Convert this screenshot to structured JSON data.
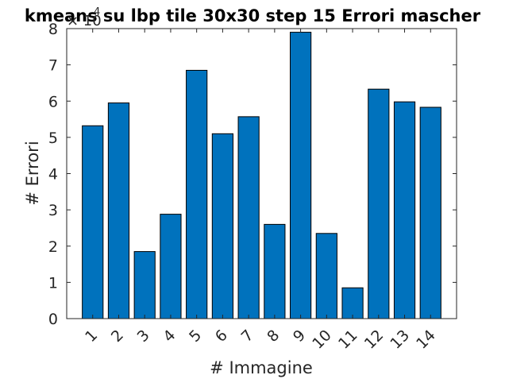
{
  "chart_data": {
    "type": "bar",
    "title": "kmeans su lbp tile 30x30 step 15 Errori mascher",
    "xlabel": "# Immagine",
    "ylabel": "# Errori",
    "y_multiplier_label": {
      "base": "× 10",
      "exponent": "4"
    },
    "categories": [
      "1",
      "2",
      "3",
      "4",
      "5",
      "6",
      "7",
      "8",
      "9",
      "10",
      "11",
      "12",
      "13",
      "14"
    ],
    "values": [
      53200,
      59500,
      18500,
      28800,
      68500,
      51000,
      55700,
      26000,
      79000,
      23500,
      8500,
      63300,
      59800,
      58300
    ],
    "ylim": [
      0,
      80000
    ],
    "yticks": [
      0,
      10000,
      20000,
      30000,
      40000,
      50000,
      60000,
      70000,
      80000
    ],
    "ytick_labels": [
      "0",
      "1",
      "2",
      "3",
      "4",
      "5",
      "6",
      "7",
      "8"
    ],
    "grid": false,
    "bar_color": "#0072bd",
    "bar_edge_color": "#000000",
    "xtick_rotation_deg": 45
  }
}
